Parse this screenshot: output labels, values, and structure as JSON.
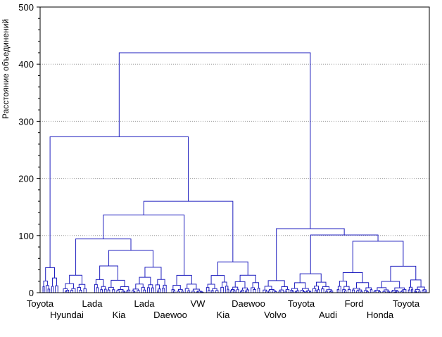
{
  "chart_data": {
    "type": "dendrogram",
    "ylabel": "Расстояние объединений",
    "ylim": [
      0,
      500
    ],
    "yticks": [
      0,
      100,
      200,
      300,
      400,
      500
    ],
    "grid": true,
    "line_color": "#1f1fbf",
    "grid_color": "#9a9a9a",
    "labels_row1": [
      "Toyota",
      "Lada",
      "Lada",
      "VW",
      "Daewoo",
      "Toyota",
      "Ford",
      "Toyota"
    ],
    "labels_row2": [
      "Hyundai",
      "Kia",
      "Daewoo",
      "Kia",
      "Volvo",
      "Audi",
      "Honda"
    ],
    "major_merges": [
      {
        "height": 420
      },
      {
        "height": 273
      },
      {
        "height": 112
      },
      {
        "height": 160
      },
      {
        "height": 136
      },
      {
        "height": 101
      },
      {
        "height": 94
      },
      {
        "height": 90
      },
      {
        "height": 74
      },
      {
        "height": 65
      },
      {
        "height": 63
      },
      {
        "height": 61
      },
      {
        "height": 53
      },
      {
        "height": 51
      },
      {
        "height": 38
      },
      {
        "height": 35
      }
    ]
  }
}
